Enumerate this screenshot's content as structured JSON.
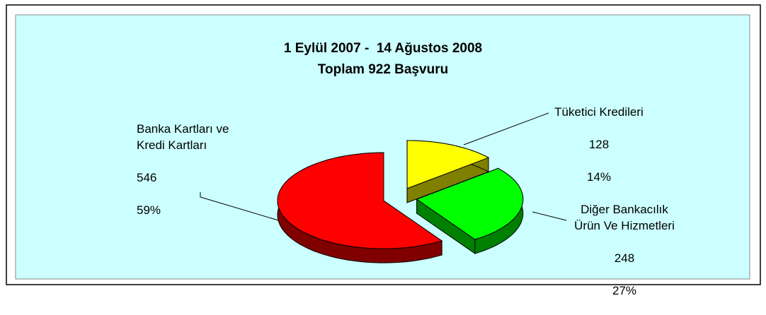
{
  "chart_data": {
    "type": "pie3d",
    "title": "1 Eylül 2007 -  14 Ağustos 2008",
    "subtitle": "Toplam 922 Başvuru",
    "categories": [
      "Tüketici Kredileri",
      "Diğer Bankacılık\nÜrün Ve Hizmetleri",
      "Banka Kartları ve\nKredi Kartları"
    ],
    "values": [
      128,
      248,
      546
    ],
    "percent_labels": [
      "14%",
      "27%",
      "59%"
    ],
    "colors": [
      "#ffff00",
      "#00ff00",
      "#ff0000"
    ],
    "side_colors": [
      "#808000",
      "#008000",
      "#800000"
    ]
  }
}
